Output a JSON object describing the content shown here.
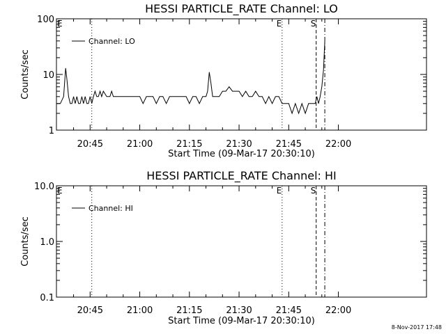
{
  "footer_timestamp": "8-Nov-2017 17:48",
  "chart_data": [
    {
      "type": "line",
      "title": "HESSI PARTICLE_RATE Channel: LO",
      "xlabel": "Start Time (09-Mar-17 20:30:10)",
      "ylabel": "Counts/sec",
      "y_scale": "log",
      "xlim_min": [
        34.83,
        105.3
      ],
      "ylim": [
        1,
        100
      ],
      "x_tick_labels": [
        "20:45",
        "21:00",
        "21:15",
        "21:30",
        "21:45",
        "22:00"
      ],
      "x_tick_values_min": [
        45,
        60,
        75,
        90,
        105,
        120
      ],
      "y_tick_labels": [
        "1",
        "10",
        "100"
      ],
      "y_tick_values": [
        1,
        10,
        100
      ],
      "legend": {
        "placement": "top-left",
        "entries": [
          "Channel: LO"
        ]
      },
      "markers": [
        {
          "label": "E",
          "x_min": 34.83,
          "style": "none"
        },
        {
          "label": "",
          "x_min": 45.5,
          "style": "dotted"
        },
        {
          "label": "E",
          "x_min": 103.0,
          "style": "dotted"
        },
        {
          "label": "S",
          "x_min": 113.3,
          "style": "dashed"
        },
        {
          "label": "",
          "x_min": 115.9,
          "style": "dashdot"
        }
      ],
      "series": [
        {
          "x": [
            35.0,
            36.0,
            37.0,
            37.6,
            38.0,
            38.5,
            39.0,
            39.5,
            40.0,
            40.5,
            41.0,
            41.5,
            42.0,
            42.5,
            43.0,
            43.5,
            44.0,
            44.5,
            45.0,
            45.5,
            46.0,
            46.5,
            47.0,
            47.5,
            48.0,
            48.5,
            49.0,
            50.0,
            51.0,
            51.5,
            52.0,
            53.0,
            54.0,
            55.0,
            56.0,
            57.0,
            58.0,
            59.0,
            60.0,
            61.0,
            62.0,
            63.0,
            64.0,
            65.0,
            66.0,
            67.0,
            68.0,
            69.0,
            70.0,
            71.0,
            72.0,
            73.0,
            74.0,
            75.0,
            76.0,
            77.0,
            78.0,
            79.0,
            80.0,
            80.5,
            81.0,
            81.5,
            82.0,
            83.0,
            84.0,
            85.0,
            86.0,
            87.0,
            88.0,
            89.0,
            90.0,
            91.0,
            92.0,
            93.0,
            94.0,
            95.0,
            96.0,
            97.0,
            98.0,
            99.0,
            100.0,
            101.0,
            102.0,
            103.0,
            104.0,
            105.0,
            106.0,
            107.0,
            108.0,
            109.0,
            110.0,
            111.0,
            112.0,
            113.0,
            113.5,
            114.0,
            114.5,
            115.0,
            115.5,
            115.9
          ],
          "values": [
            3,
            3,
            4,
            13,
            8,
            4,
            3,
            3,
            4,
            3,
            4,
            3,
            3,
            4,
            3,
            4,
            3,
            3,
            4,
            3,
            4,
            5,
            4,
            4,
            5,
            4,
            5,
            4,
            4,
            5,
            4,
            4,
            4,
            4,
            4,
            4,
            4,
            4,
            4,
            3,
            4,
            4,
            4,
            3,
            4,
            4,
            3,
            4,
            4,
            4,
            4,
            4,
            4,
            3,
            4,
            4,
            3,
            4,
            4,
            5,
            11,
            7,
            4,
            4,
            4,
            5,
            5,
            6,
            5,
            5,
            5,
            4,
            5,
            4,
            4,
            5,
            4,
            4,
            3,
            4,
            3,
            4,
            4,
            3,
            3,
            3,
            2,
            3,
            2,
            3,
            2,
            3,
            3,
            3,
            4,
            3,
            4,
            6,
            12,
            40
          ]
        }
      ]
    },
    {
      "type": "line",
      "title": "HESSI PARTICLE_RATE Channel: HI",
      "xlabel": "Start Time (09-Mar-17 20:30:10)",
      "ylabel": "Counts/sec",
      "y_scale": "log",
      "xlim_min": [
        34.83,
        105.3
      ],
      "ylim": [
        0.1,
        10
      ],
      "x_tick_labels": [
        "20:45",
        "21:00",
        "21:15",
        "21:30",
        "21:45",
        "22:00"
      ],
      "x_tick_values_min": [
        45,
        60,
        75,
        90,
        105,
        120
      ],
      "y_tick_labels": [
        "0.1",
        "1.0",
        "10.0"
      ],
      "y_tick_values": [
        0.1,
        1,
        10
      ],
      "legend": {
        "placement": "top-left",
        "entries": [
          "Channel: HI"
        ]
      },
      "markers": [
        {
          "label": "E",
          "x_min": 34.83,
          "style": "none"
        },
        {
          "label": "",
          "x_min": 45.5,
          "style": "dotted"
        },
        {
          "label": "E",
          "x_min": 103.0,
          "style": "dotted"
        },
        {
          "label": "S",
          "x_min": 113.3,
          "style": "dashed"
        },
        {
          "label": "",
          "x_min": 115.9,
          "style": "dashdot"
        }
      ],
      "series": []
    }
  ]
}
